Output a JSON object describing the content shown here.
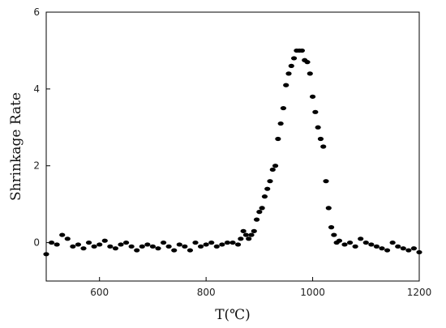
{
  "chart_data": {
    "type": "scatter",
    "xlabel": "T(℃)",
    "ylabel": "Shrinkage Rate",
    "xlim": [
      500,
      1200
    ],
    "ylim": [
      -1,
      6
    ],
    "xticks": [
      600,
      800,
      1000,
      1200
    ],
    "yticks": [
      0,
      2,
      4,
      6
    ],
    "grid": false,
    "marker_color": "#000000",
    "series": [
      {
        "x": [
          500,
          510,
          520,
          530,
          540,
          550,
          560,
          570,
          580,
          590,
          600,
          610,
          620,
          630,
          640,
          650,
          660,
          670,
          680,
          690,
          700,
          710,
          720,
          730,
          740,
          750,
          760,
          770,
          780,
          790,
          800,
          810,
          820,
          830,
          840,
          850,
          860,
          865,
          870,
          875,
          880,
          885,
          890,
          895,
          900,
          905,
          910,
          915,
          920,
          925,
          930,
          935,
          940,
          945,
          950,
          955,
          960,
          965,
          970,
          975,
          980,
          985,
          990,
          995,
          1000,
          1005,
          1010,
          1015,
          1020,
          1025,
          1030,
          1035,
          1040,
          1045,
          1050,
          1060,
          1070,
          1080,
          1090,
          1100,
          1110,
          1120,
          1130,
          1140,
          1150,
          1160,
          1170,
          1180,
          1190,
          1200
        ],
        "y": [
          -0.3,
          0.0,
          -0.05,
          0.2,
          0.1,
          -0.1,
          -0.05,
          -0.15,
          0.0,
          -0.1,
          -0.05,
          0.05,
          -0.1,
          -0.15,
          -0.05,
          0.0,
          -0.1,
          -0.2,
          -0.1,
          -0.05,
          -0.1,
          -0.15,
          0.0,
          -0.1,
          -0.2,
          -0.05,
          -0.1,
          -0.2,
          0.0,
          -0.1,
          -0.05,
          0.0,
          -0.1,
          -0.05,
          0.0,
          0.0,
          -0.05,
          0.1,
          0.3,
          0.2,
          0.1,
          0.2,
          0.3,
          0.6,
          0.8,
          0.9,
          1.2,
          1.4,
          1.6,
          1.9,
          2.0,
          2.7,
          3.1,
          3.5,
          4.1,
          4.4,
          4.6,
          4.8,
          5.0,
          5.0,
          5.0,
          4.75,
          4.7,
          4.4,
          3.8,
          3.4,
          3.0,
          2.7,
          2.5,
          1.6,
          0.9,
          0.4,
          0.2,
          0.0,
          0.05,
          -0.05,
          0.0,
          -0.1,
          0.1,
          0.0,
          -0.05,
          -0.1,
          -0.15,
          -0.2,
          0.0,
          -0.1,
          -0.15,
          -0.2,
          -0.15,
          -0.25
        ]
      }
    ]
  }
}
